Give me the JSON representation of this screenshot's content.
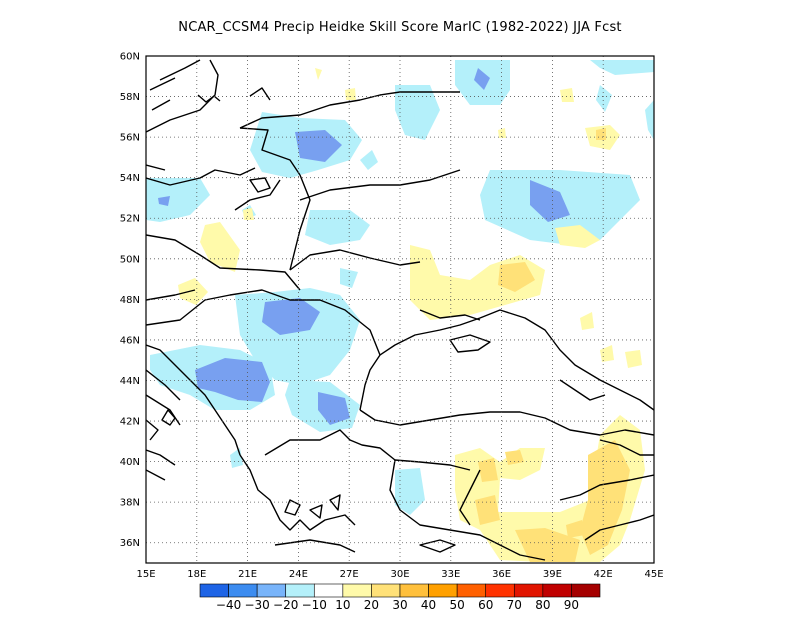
{
  "title": "NCAR_CCSM4 Precip Heidke Skill Score MarIC (1982-2022) JJA Fcst",
  "map": {
    "lon_range": [
      15,
      45
    ],
    "lat_range": [
      35,
      60
    ],
    "lon_ticks": [
      {
        "value": 15,
        "label": "15E"
      },
      {
        "value": 18,
        "label": "18E"
      },
      {
        "value": 21,
        "label": "21E"
      },
      {
        "value": 24,
        "label": "24E"
      },
      {
        "value": 27,
        "label": "27E"
      },
      {
        "value": 30,
        "label": "30E"
      },
      {
        "value": 33,
        "label": "33E"
      },
      {
        "value": 36,
        "label": "36E"
      },
      {
        "value": 39,
        "label": "39E"
      },
      {
        "value": 42,
        "label": "42E"
      },
      {
        "value": 45,
        "label": "45E"
      }
    ],
    "lat_ticks": [
      {
        "value": 36,
        "label": "36N"
      },
      {
        "value": 38,
        "label": "38N"
      },
      {
        "value": 40,
        "label": "40N"
      },
      {
        "value": 42,
        "label": "42N"
      },
      {
        "value": 44,
        "label": "44N"
      },
      {
        "value": 46,
        "label": "46N"
      },
      {
        "value": 48,
        "label": "48N"
      },
      {
        "value": 50,
        "label": "50N"
      },
      {
        "value": 52,
        "label": "52N"
      },
      {
        "value": 54,
        "label": "54N"
      },
      {
        "value": 56,
        "label": "56N"
      },
      {
        "value": 58,
        "label": "58N"
      },
      {
        "value": 60,
        "label": "60N"
      }
    ],
    "grid": "dotted"
  },
  "colorbar": {
    "labels": [
      "-40",
      "-30",
      "-20",
      "-10",
      "10",
      "20",
      "30",
      "40",
      "50",
      "60",
      "70",
      "80",
      "90"
    ],
    "colors": [
      "#1e64e6",
      "#3c8cf0",
      "#78b4fa",
      "#b4f0fa",
      "#ffffff",
      "#fffaaa",
      "#ffe178",
      "#ffc03c",
      "#ffa000",
      "#ff6000",
      "#ff3200",
      "#e11400",
      "#c00000",
      "#a50000"
    ]
  },
  "fill_colors": {
    "dark_blue": "#78a0f0",
    "light_blue": "#b4f0fa",
    "light_yellow": "#fffaaa",
    "yellow": "#ffe178"
  }
}
